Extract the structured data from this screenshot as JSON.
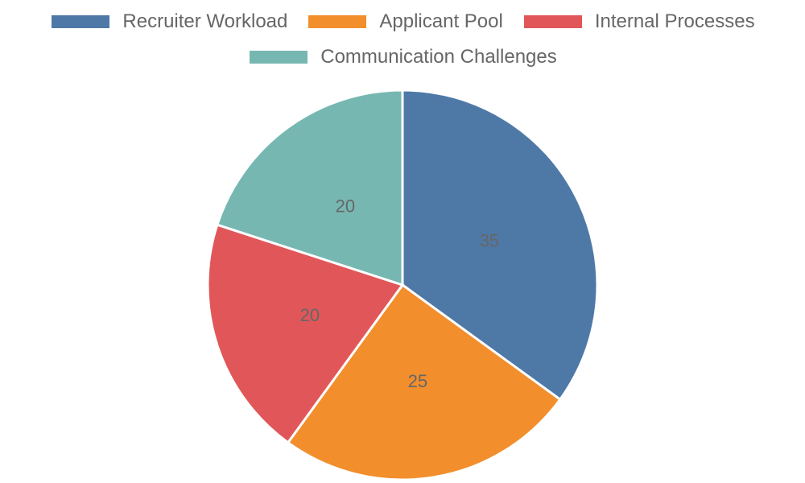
{
  "chart_data": {
    "type": "pie",
    "title": "",
    "legend_position": "top",
    "series": [
      {
        "categories": [
          "Recruiter Workload",
          "Applicant Pool",
          "Internal Processes",
          "Communication Challenges"
        ],
        "values": [
          35,
          25,
          20,
          20
        ]
      }
    ],
    "colors": [
      "#4e79a7",
      "#f28e2c",
      "#e15759",
      "#76b7b2"
    ],
    "data_labels": [
      "35",
      "25",
      "20",
      "20"
    ]
  }
}
